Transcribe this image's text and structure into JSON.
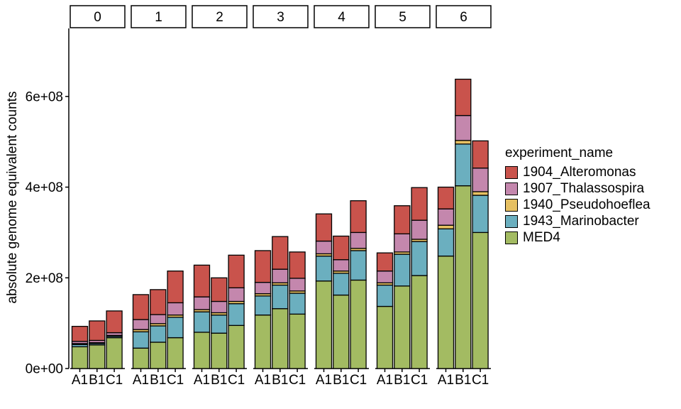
{
  "chart_data": {
    "type": "bar",
    "stacked": true,
    "faceted": true,
    "ylabel": "absolute genome equivalent counts",
    "xlabel": "",
    "ylim": [
      0,
      750000000
    ],
    "y_ticks": [
      0,
      200000000,
      400000000,
      600000000
    ],
    "y_tick_labels": [
      "0e+00",
      "2e+08",
      "4e+08",
      "6e+08"
    ],
    "categories": [
      "A1",
      "B1",
      "C1"
    ],
    "facets": [
      "0",
      "1",
      "2",
      "3",
      "4",
      "5",
      "6"
    ],
    "legend_title": "experiment_name",
    "legend_position": "right",
    "grid": false,
    "series": [
      {
        "name": "MED4",
        "color": "#A3BB62",
        "values": [
          [
            48000000,
            52000000,
            68000000
          ],
          [
            45000000,
            58000000,
            68000000
          ],
          [
            80000000,
            78000000,
            95000000
          ],
          [
            118000000,
            132000000,
            120000000
          ],
          [
            193000000,
            162000000,
            195000000
          ],
          [
            137000000,
            182000000,
            205000000
          ],
          [
            248000000,
            403000000,
            300000000
          ]
        ]
      },
      {
        "name": "1943_Marinobacter",
        "color": "#6BAFBF",
        "values": [
          [
            5000000,
            3000000,
            3000000
          ],
          [
            36000000,
            36000000,
            45000000
          ],
          [
            45000000,
            40000000,
            48000000
          ],
          [
            42000000,
            52000000,
            46000000
          ],
          [
            55000000,
            48000000,
            65000000
          ],
          [
            47000000,
            70000000,
            75000000
          ],
          [
            60000000,
            92000000,
            82000000
          ]
        ]
      },
      {
        "name": "1940_Pseudohoeflea",
        "color": "#E6C062",
        "values": [
          [
            2000000,
            2000000,
            2000000
          ],
          [
            5000000,
            5000000,
            5000000
          ],
          [
            5000000,
            5000000,
            5000000
          ],
          [
            5000000,
            5000000,
            5000000
          ],
          [
            5000000,
            5000000,
            5000000
          ],
          [
            5000000,
            5000000,
            5000000
          ],
          [
            8000000,
            8000000,
            8000000
          ]
        ]
      },
      {
        "name": "1907_Thalassospira",
        "color": "#C487AD",
        "values": [
          [
            5000000,
            5000000,
            6000000
          ],
          [
            22000000,
            20000000,
            27000000
          ],
          [
            28000000,
            25000000,
            30000000
          ],
          [
            25000000,
            30000000,
            28000000
          ],
          [
            28000000,
            25000000,
            35000000
          ],
          [
            26000000,
            40000000,
            42000000
          ],
          [
            36000000,
            55000000,
            52000000
          ]
        ]
      },
      {
        "name": "1904_Alteromonas",
        "color": "#C9534C",
        "values": [
          [
            33000000,
            43000000,
            48000000
          ],
          [
            55000000,
            55000000,
            70000000
          ],
          [
            70000000,
            52000000,
            72000000
          ],
          [
            70000000,
            72000000,
            58000000
          ],
          [
            60000000,
            52000000,
            70000000
          ],
          [
            40000000,
            62000000,
            72000000
          ],
          [
            48000000,
            80000000,
            60000000
          ]
        ]
      }
    ]
  }
}
